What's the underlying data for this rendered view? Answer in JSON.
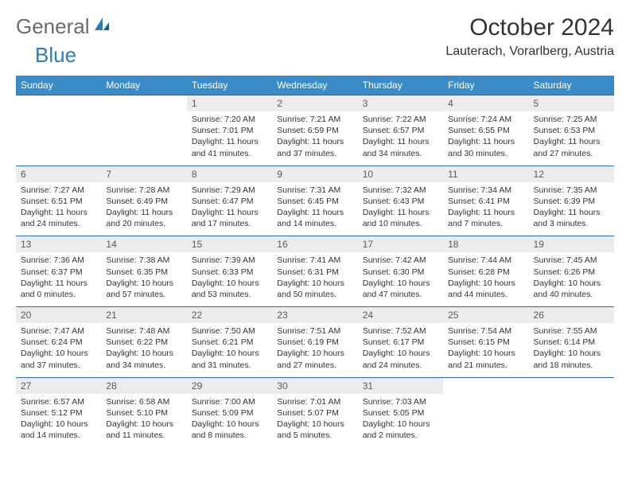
{
  "logo": {
    "general": "General",
    "blue": "Blue"
  },
  "title": "October 2024",
  "location": "Lauterach, Vorarlberg, Austria",
  "header_bg": "#3b8bc9",
  "rule_color": "#2b6ca3",
  "daynum_bg": "#ececec",
  "dow": [
    "Sunday",
    "Monday",
    "Tuesday",
    "Wednesday",
    "Thursday",
    "Friday",
    "Saturday"
  ],
  "weeks": [
    [
      null,
      null,
      {
        "n": "1",
        "sr": "7:20 AM",
        "ss": "7:01 PM",
        "dl": "11 hours and 41 minutes."
      },
      {
        "n": "2",
        "sr": "7:21 AM",
        "ss": "6:59 PM",
        "dl": "11 hours and 37 minutes."
      },
      {
        "n": "3",
        "sr": "7:22 AM",
        "ss": "6:57 PM",
        "dl": "11 hours and 34 minutes."
      },
      {
        "n": "4",
        "sr": "7:24 AM",
        "ss": "6:55 PM",
        "dl": "11 hours and 30 minutes."
      },
      {
        "n": "5",
        "sr": "7:25 AM",
        "ss": "6:53 PM",
        "dl": "11 hours and 27 minutes."
      }
    ],
    [
      {
        "n": "6",
        "sr": "7:27 AM",
        "ss": "6:51 PM",
        "dl": "11 hours and 24 minutes."
      },
      {
        "n": "7",
        "sr": "7:28 AM",
        "ss": "6:49 PM",
        "dl": "11 hours and 20 minutes."
      },
      {
        "n": "8",
        "sr": "7:29 AM",
        "ss": "6:47 PM",
        "dl": "11 hours and 17 minutes."
      },
      {
        "n": "9",
        "sr": "7:31 AM",
        "ss": "6:45 PM",
        "dl": "11 hours and 14 minutes."
      },
      {
        "n": "10",
        "sr": "7:32 AM",
        "ss": "6:43 PM",
        "dl": "11 hours and 10 minutes."
      },
      {
        "n": "11",
        "sr": "7:34 AM",
        "ss": "6:41 PM",
        "dl": "11 hours and 7 minutes."
      },
      {
        "n": "12",
        "sr": "7:35 AM",
        "ss": "6:39 PM",
        "dl": "11 hours and 3 minutes."
      }
    ],
    [
      {
        "n": "13",
        "sr": "7:36 AM",
        "ss": "6:37 PM",
        "dl": "11 hours and 0 minutes."
      },
      {
        "n": "14",
        "sr": "7:38 AM",
        "ss": "6:35 PM",
        "dl": "10 hours and 57 minutes."
      },
      {
        "n": "15",
        "sr": "7:39 AM",
        "ss": "6:33 PM",
        "dl": "10 hours and 53 minutes."
      },
      {
        "n": "16",
        "sr": "7:41 AM",
        "ss": "6:31 PM",
        "dl": "10 hours and 50 minutes."
      },
      {
        "n": "17",
        "sr": "7:42 AM",
        "ss": "6:30 PM",
        "dl": "10 hours and 47 minutes."
      },
      {
        "n": "18",
        "sr": "7:44 AM",
        "ss": "6:28 PM",
        "dl": "10 hours and 44 minutes."
      },
      {
        "n": "19",
        "sr": "7:45 AM",
        "ss": "6:26 PM",
        "dl": "10 hours and 40 minutes."
      }
    ],
    [
      {
        "n": "20",
        "sr": "7:47 AM",
        "ss": "6:24 PM",
        "dl": "10 hours and 37 minutes."
      },
      {
        "n": "21",
        "sr": "7:48 AM",
        "ss": "6:22 PM",
        "dl": "10 hours and 34 minutes."
      },
      {
        "n": "22",
        "sr": "7:50 AM",
        "ss": "6:21 PM",
        "dl": "10 hours and 31 minutes."
      },
      {
        "n": "23",
        "sr": "7:51 AM",
        "ss": "6:19 PM",
        "dl": "10 hours and 27 minutes."
      },
      {
        "n": "24",
        "sr": "7:52 AM",
        "ss": "6:17 PM",
        "dl": "10 hours and 24 minutes."
      },
      {
        "n": "25",
        "sr": "7:54 AM",
        "ss": "6:15 PM",
        "dl": "10 hours and 21 minutes."
      },
      {
        "n": "26",
        "sr": "7:55 AM",
        "ss": "6:14 PM",
        "dl": "10 hours and 18 minutes."
      }
    ],
    [
      {
        "n": "27",
        "sr": "6:57 AM",
        "ss": "5:12 PM",
        "dl": "10 hours and 14 minutes."
      },
      {
        "n": "28",
        "sr": "6:58 AM",
        "ss": "5:10 PM",
        "dl": "10 hours and 11 minutes."
      },
      {
        "n": "29",
        "sr": "7:00 AM",
        "ss": "5:09 PM",
        "dl": "10 hours and 8 minutes."
      },
      {
        "n": "30",
        "sr": "7:01 AM",
        "ss": "5:07 PM",
        "dl": "10 hours and 5 minutes."
      },
      {
        "n": "31",
        "sr": "7:03 AM",
        "ss": "5:05 PM",
        "dl": "10 hours and 2 minutes."
      },
      null,
      null
    ]
  ],
  "labels": {
    "sunrise": "Sunrise: ",
    "sunset": "Sunset: ",
    "daylight": "Daylight: "
  }
}
